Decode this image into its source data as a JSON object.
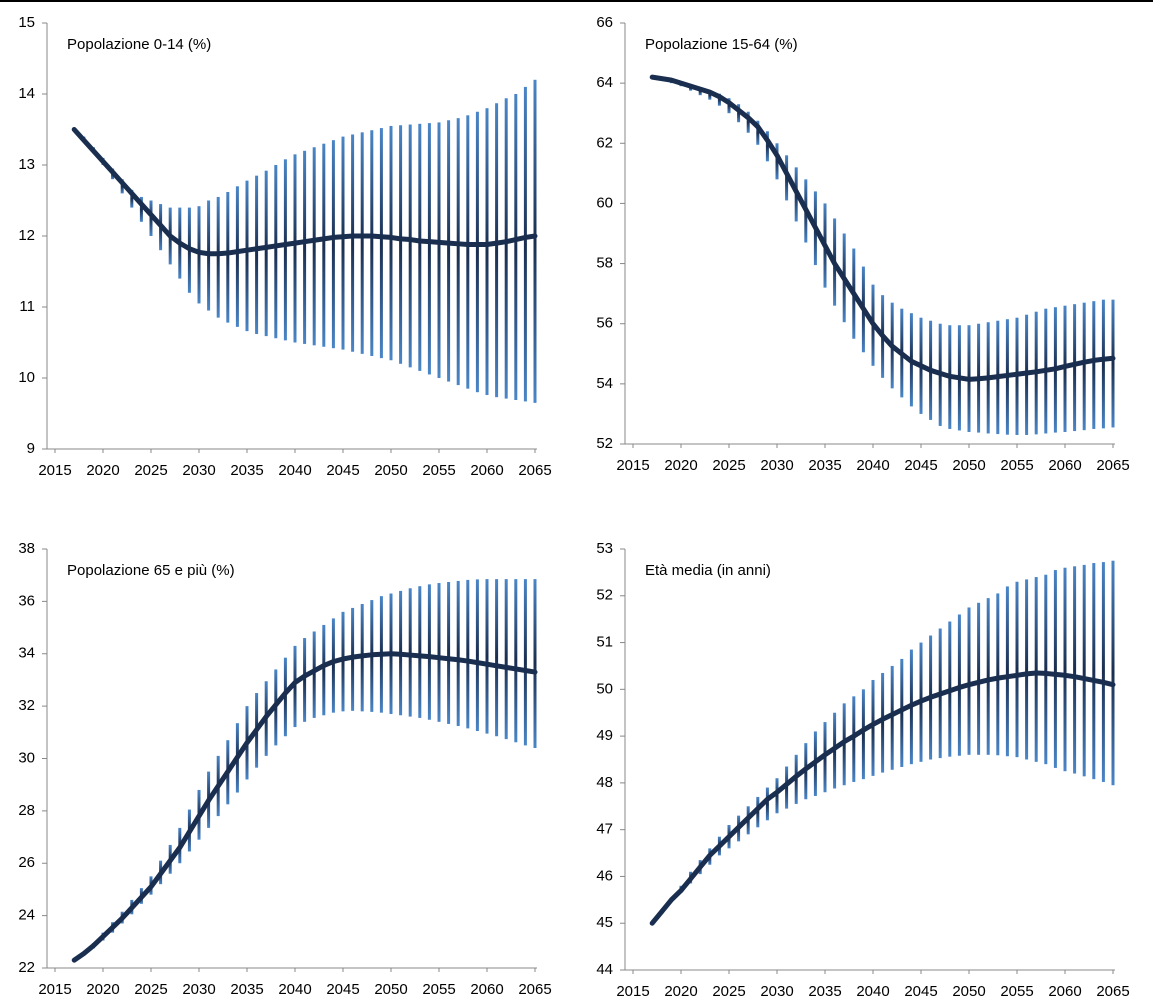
{
  "chart_data": [
    {
      "type": "fan",
      "title": "Popolazione 0-14 (%)",
      "line_color": "#1a2e4f",
      "band_color": "#4a86c8",
      "x": [
        2017,
        2018,
        2019,
        2020,
        2021,
        2022,
        2023,
        2024,
        2025,
        2026,
        2027,
        2028,
        2029,
        2030,
        2031,
        2032,
        2033,
        2034,
        2035,
        2036,
        2037,
        2038,
        2039,
        2040,
        2041,
        2042,
        2043,
        2044,
        2045,
        2046,
        2047,
        2048,
        2049,
        2050,
        2051,
        2052,
        2053,
        2054,
        2055,
        2056,
        2057,
        2058,
        2059,
        2060,
        2061,
        2062,
        2063,
        2064,
        2065
      ],
      "values": [
        13.5,
        13.35,
        13.2,
        13.05,
        12.9,
        12.75,
        12.6,
        12.45,
        12.3,
        12.15,
        12.0,
        11.9,
        11.82,
        11.77,
        11.75,
        11.75,
        11.76,
        11.78,
        11.8,
        11.82,
        11.84,
        11.86,
        11.88,
        11.9,
        11.92,
        11.94,
        11.96,
        11.98,
        11.99,
        12.0,
        12.0,
        12.0,
        11.99,
        11.98,
        11.96,
        11.95,
        11.93,
        11.92,
        11.91,
        11.9,
        11.89,
        11.88,
        11.88,
        11.88,
        11.9,
        11.92,
        11.95,
        11.98,
        12.0
      ],
      "upper": [
        13.5,
        13.4,
        13.25,
        13.1,
        12.95,
        12.8,
        12.65,
        12.55,
        12.5,
        12.45,
        12.4,
        12.4,
        12.4,
        12.42,
        12.5,
        12.55,
        12.62,
        12.7,
        12.78,
        12.85,
        12.92,
        13.0,
        13.08,
        13.15,
        13.2,
        13.25,
        13.3,
        13.35,
        13.4,
        13.43,
        13.46,
        13.49,
        13.52,
        13.55,
        13.56,
        13.57,
        13.58,
        13.59,
        13.6,
        13.63,
        13.66,
        13.7,
        13.75,
        13.8,
        13.87,
        13.94,
        14.0,
        14.1,
        14.2
      ],
      "lower": [
        13.5,
        13.35,
        13.2,
        13.0,
        12.8,
        12.6,
        12.4,
        12.2,
        12.0,
        11.8,
        11.6,
        11.4,
        11.2,
        11.05,
        10.95,
        10.85,
        10.78,
        10.72,
        10.66,
        10.62,
        10.59,
        10.56,
        10.53,
        10.5,
        10.48,
        10.46,
        10.44,
        10.42,
        10.4,
        10.37,
        10.34,
        10.31,
        10.28,
        10.25,
        10.2,
        10.15,
        10.1,
        10.05,
        10.0,
        9.95,
        9.9,
        9.85,
        9.8,
        9.76,
        9.73,
        9.71,
        9.69,
        9.67,
        9.65
      ],
      "xlim": [
        2015,
        2065
      ],
      "xticks": [
        2015,
        2020,
        2025,
        2030,
        2035,
        2040,
        2045,
        2050,
        2055,
        2060,
        2065
      ],
      "ylim": [
        9,
        15
      ],
      "yticks": [
        9,
        10,
        11,
        12,
        13,
        14,
        15
      ]
    },
    {
      "type": "fan",
      "title": "Popolazione 15-64 (%)",
      "line_color": "#1a2e4f",
      "band_color": "#4a86c8",
      "x": [
        2017,
        2018,
        2019,
        2020,
        2021,
        2022,
        2023,
        2024,
        2025,
        2026,
        2027,
        2028,
        2029,
        2030,
        2031,
        2032,
        2033,
        2034,
        2035,
        2036,
        2037,
        2038,
        2039,
        2040,
        2041,
        2042,
        2043,
        2044,
        2045,
        2046,
        2047,
        2048,
        2049,
        2050,
        2051,
        2052,
        2053,
        2054,
        2055,
        2056,
        2057,
        2058,
        2059,
        2060,
        2061,
        2062,
        2063,
        2064,
        2065
      ],
      "values": [
        64.2,
        64.15,
        64.1,
        64.0,
        63.9,
        63.8,
        63.7,
        63.55,
        63.35,
        63.1,
        62.85,
        62.55,
        62.1,
        61.6,
        61.0,
        60.4,
        59.8,
        59.2,
        58.6,
        58.0,
        57.5,
        57.0,
        56.5,
        56.0,
        55.6,
        55.25,
        55.0,
        54.75,
        54.6,
        54.45,
        54.35,
        54.25,
        54.2,
        54.15,
        54.17,
        54.2,
        54.24,
        54.28,
        54.32,
        54.36,
        54.4,
        54.45,
        54.5,
        54.58,
        54.65,
        54.72,
        54.78,
        54.82,
        54.85
      ],
      "upper": [
        64.2,
        64.15,
        64.1,
        64.05,
        63.95,
        63.85,
        63.75,
        63.65,
        63.5,
        63.3,
        63.05,
        62.75,
        62.4,
        62.0,
        61.6,
        61.2,
        60.8,
        60.4,
        60.0,
        59.5,
        59.0,
        58.5,
        57.9,
        57.3,
        56.95,
        56.7,
        56.5,
        56.35,
        56.2,
        56.1,
        56.0,
        55.95,
        55.95,
        55.95,
        56.0,
        56.05,
        56.1,
        56.15,
        56.2,
        56.3,
        56.4,
        56.5,
        56.55,
        56.6,
        56.65,
        56.7,
        56.75,
        56.8,
        56.8
      ],
      "lower": [
        64.2,
        64.1,
        64.0,
        63.9,
        63.75,
        63.6,
        63.45,
        63.25,
        63.0,
        62.7,
        62.35,
        61.95,
        61.4,
        60.8,
        60.1,
        59.4,
        58.7,
        57.95,
        57.2,
        56.6,
        56.05,
        55.5,
        55.05,
        54.6,
        54.2,
        53.85,
        53.55,
        53.25,
        53.0,
        52.8,
        52.6,
        52.5,
        52.45,
        52.4,
        52.38,
        52.35,
        52.33,
        52.31,
        52.3,
        52.3,
        52.32,
        52.35,
        52.38,
        52.4,
        52.43,
        52.46,
        52.5,
        52.52,
        52.55
      ],
      "xlim": [
        2015,
        2065
      ],
      "xticks": [
        2015,
        2020,
        2025,
        2030,
        2035,
        2040,
        2045,
        2050,
        2055,
        2060,
        2065
      ],
      "ylim": [
        52,
        66
      ],
      "yticks": [
        52,
        54,
        56,
        58,
        60,
        62,
        64,
        66
      ]
    },
    {
      "type": "fan",
      "title": "Popolazione 65 e più (%)",
      "line_color": "#1a2e4f",
      "band_color": "#4a86c8",
      "x": [
        2017,
        2018,
        2019,
        2020,
        2021,
        2022,
        2023,
        2024,
        2025,
        2026,
        2027,
        2028,
        2029,
        2030,
        2031,
        2032,
        2033,
        2034,
        2035,
        2036,
        2037,
        2038,
        2039,
        2040,
        2041,
        2042,
        2043,
        2044,
        2045,
        2046,
        2047,
        2048,
        2049,
        2050,
        2051,
        2052,
        2053,
        2054,
        2055,
        2056,
        2057,
        2058,
        2059,
        2060,
        2061,
        2062,
        2063,
        2064,
        2065
      ],
      "values": [
        22.3,
        22.55,
        22.85,
        23.2,
        23.55,
        23.9,
        24.3,
        24.7,
        25.1,
        25.6,
        26.1,
        26.6,
        27.2,
        27.8,
        28.4,
        28.95,
        29.5,
        30.05,
        30.6,
        31.1,
        31.6,
        32.05,
        32.5,
        32.9,
        33.15,
        33.35,
        33.55,
        33.7,
        33.8,
        33.87,
        33.92,
        33.96,
        33.98,
        34.0,
        33.98,
        33.95,
        33.92,
        33.89,
        33.85,
        33.81,
        33.77,
        33.72,
        33.66,
        33.6,
        33.54,
        33.48,
        33.42,
        33.36,
        33.3
      ],
      "upper": [
        22.3,
        22.6,
        22.95,
        23.35,
        23.75,
        24.15,
        24.6,
        25.05,
        25.5,
        26.1,
        26.7,
        27.35,
        28.05,
        28.8,
        29.5,
        30.1,
        30.7,
        31.35,
        32.0,
        32.5,
        32.95,
        33.4,
        33.85,
        34.3,
        34.6,
        34.85,
        35.1,
        35.35,
        35.6,
        35.75,
        35.9,
        36.05,
        36.2,
        36.3,
        36.4,
        36.5,
        36.58,
        36.65,
        36.7,
        36.74,
        36.78,
        36.82,
        36.84,
        36.85,
        36.85,
        36.85,
        36.85,
        36.85,
        36.85
      ],
      "lower": [
        22.3,
        22.5,
        22.75,
        23.05,
        23.35,
        23.7,
        24.05,
        24.45,
        24.8,
        25.2,
        25.6,
        26.0,
        26.45,
        26.9,
        27.35,
        27.8,
        28.25,
        28.7,
        29.2,
        29.65,
        30.1,
        30.5,
        30.85,
        31.2,
        31.4,
        31.55,
        31.65,
        31.75,
        31.8,
        31.82,
        31.8,
        31.78,
        31.75,
        31.7,
        31.65,
        31.6,
        31.55,
        31.48,
        31.4,
        31.32,
        31.24,
        31.15,
        31.05,
        30.95,
        30.85,
        30.74,
        30.62,
        30.5,
        30.4
      ],
      "xlim": [
        2015,
        2065
      ],
      "xticks": [
        2015,
        2020,
        2025,
        2030,
        2035,
        2040,
        2045,
        2050,
        2055,
        2060,
        2065
      ],
      "ylim": [
        22,
        38
      ],
      "yticks": [
        22,
        24,
        26,
        28,
        30,
        32,
        34,
        36,
        38
      ]
    },
    {
      "type": "fan",
      "title": "Età media (in anni)",
      "line_color": "#1a2e4f",
      "band_color": "#4a86c8",
      "x": [
        2017,
        2018,
        2019,
        2020,
        2021,
        2022,
        2023,
        2024,
        2025,
        2026,
        2027,
        2028,
        2029,
        2030,
        2031,
        2032,
        2033,
        2034,
        2035,
        2036,
        2037,
        2038,
        2039,
        2040,
        2041,
        2042,
        2043,
        2044,
        2045,
        2046,
        2047,
        2048,
        2049,
        2050,
        2051,
        2052,
        2053,
        2054,
        2055,
        2056,
        2057,
        2058,
        2059,
        2060,
        2061,
        2062,
        2063,
        2064,
        2065
      ],
      "values": [
        45.0,
        45.25,
        45.5,
        45.7,
        45.95,
        46.2,
        46.45,
        46.65,
        46.85,
        47.05,
        47.25,
        47.45,
        47.65,
        47.8,
        47.97,
        48.14,
        48.3,
        48.45,
        48.6,
        48.74,
        48.88,
        49.0,
        49.13,
        49.25,
        49.36,
        49.46,
        49.56,
        49.66,
        49.75,
        49.83,
        49.9,
        49.97,
        50.04,
        50.1,
        50.15,
        50.2,
        50.24,
        50.27,
        50.3,
        50.33,
        50.35,
        50.34,
        50.32,
        50.3,
        50.27,
        50.23,
        50.19,
        50.15,
        50.1
      ],
      "upper": [
        45.0,
        45.3,
        45.55,
        45.8,
        46.1,
        46.35,
        46.6,
        46.85,
        47.1,
        47.3,
        47.5,
        47.7,
        47.9,
        48.1,
        48.35,
        48.6,
        48.85,
        49.1,
        49.3,
        49.5,
        49.7,
        49.85,
        50.0,
        50.2,
        50.35,
        50.5,
        50.65,
        50.85,
        51.0,
        51.15,
        51.3,
        51.45,
        51.6,
        51.75,
        51.85,
        51.95,
        52.05,
        52.2,
        52.3,
        52.35,
        52.4,
        52.45,
        52.55,
        52.6,
        52.63,
        52.66,
        52.7,
        52.72,
        52.75
      ],
      "lower": [
        45.0,
        45.2,
        45.45,
        45.65,
        45.85,
        46.05,
        46.25,
        46.45,
        46.6,
        46.75,
        46.9,
        47.05,
        47.2,
        47.35,
        47.45,
        47.55,
        47.65,
        47.72,
        47.8,
        47.88,
        47.95,
        48.02,
        48.08,
        48.15,
        48.22,
        48.28,
        48.34,
        48.4,
        48.45,
        48.5,
        48.53,
        48.56,
        48.58,
        48.6,
        48.6,
        48.6,
        48.59,
        48.57,
        48.55,
        48.5,
        48.45,
        48.4,
        48.32,
        48.25,
        48.2,
        48.14,
        48.08,
        48.02,
        47.95
      ],
      "xlim": [
        2015,
        2065
      ],
      "xticks": [
        2015,
        2020,
        2025,
        2030,
        2035,
        2040,
        2045,
        2050,
        2055,
        2060,
        2065
      ],
      "ylim": [
        44,
        53
      ],
      "yticks": [
        44,
        45,
        46,
        47,
        48,
        49,
        50,
        51,
        52,
        53
      ]
    }
  ]
}
